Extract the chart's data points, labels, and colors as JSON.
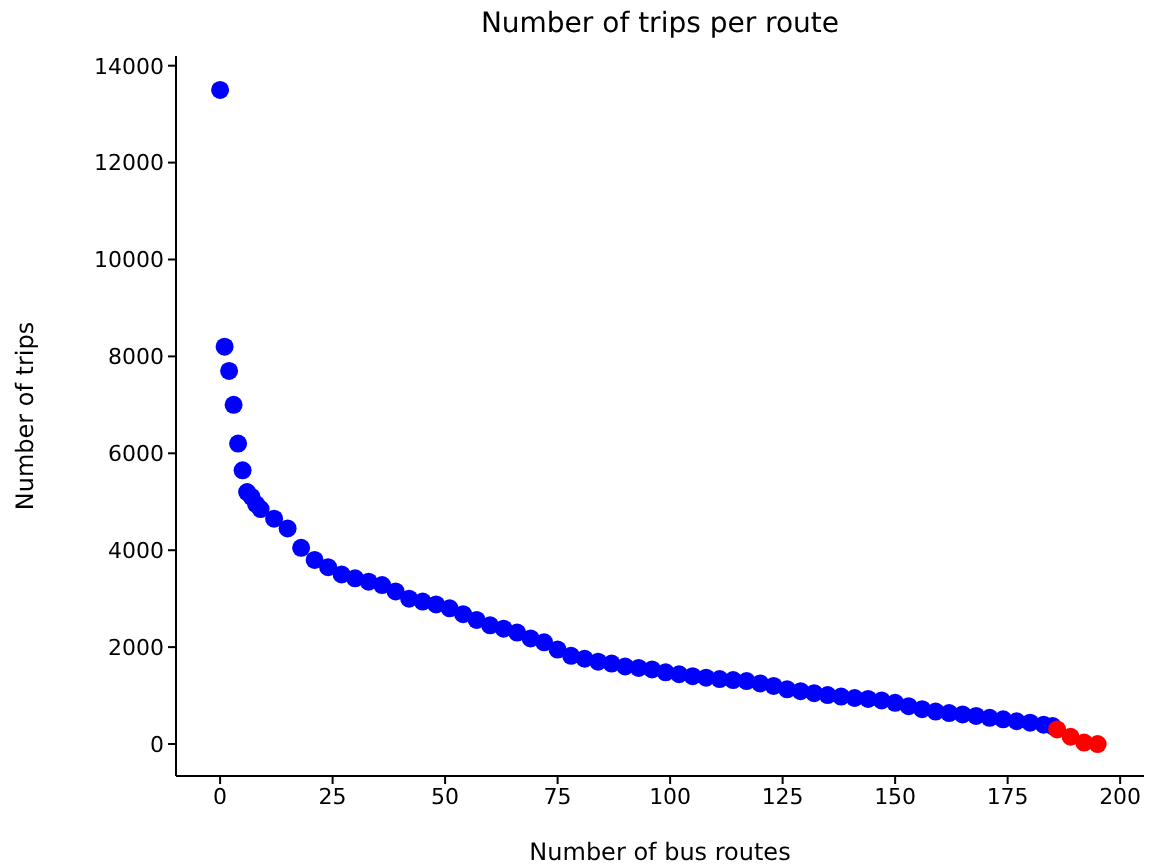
{
  "chart_data": {
    "type": "scatter",
    "title": "Number of trips per route",
    "xlabel": "Number of bus routes",
    "ylabel": "Number of trips",
    "xlim": [
      -9.8,
      205.3
    ],
    "xticks": [
      0,
      25,
      50,
      75,
      100,
      125,
      150,
      175,
      200
    ],
    "ylim": [
      -660,
      14200
    ],
    "yticks": [
      0,
      2000,
      4000,
      6000,
      8000,
      10000,
      12000,
      14000
    ],
    "grid": false,
    "marker": "circle",
    "series": [
      {
        "color": "#0000ff",
        "x": [
          0,
          1,
          2,
          3,
          4,
          5,
          6,
          7,
          8,
          9,
          12,
          15,
          18,
          21,
          24,
          27,
          30,
          33,
          36,
          39,
          42,
          45,
          48,
          51,
          54,
          57,
          60,
          63,
          66,
          69,
          72,
          75,
          78,
          81,
          84,
          87,
          90,
          93,
          96,
          99,
          102,
          105,
          108,
          111,
          114,
          117,
          120,
          123,
          126,
          129,
          132,
          135,
          138,
          141,
          144,
          147,
          150,
          153,
          156,
          159,
          162,
          165,
          168,
          171,
          174,
          177,
          180,
          183,
          185
        ],
        "values": [
          13500,
          8200,
          7700,
          7000,
          6200,
          5650,
          5200,
          5100,
          4950,
          4850,
          4650,
          4450,
          4050,
          3800,
          3650,
          3500,
          3420,
          3350,
          3280,
          3150,
          3000,
          2940,
          2880,
          2800,
          2680,
          2560,
          2450,
          2380,
          2300,
          2180,
          2100,
          1950,
          1820,
          1760,
          1700,
          1660,
          1600,
          1570,
          1540,
          1480,
          1440,
          1400,
          1370,
          1340,
          1320,
          1300,
          1250,
          1200,
          1130,
          1090,
          1050,
          1010,
          980,
          950,
          930,
          900,
          850,
          780,
          720,
          670,
          640,
          610,
          580,
          540,
          510,
          470,
          440,
          400,
          370
        ]
      },
      {
        "color": "#ff0000",
        "x": [
          186,
          189,
          192,
          195
        ],
        "values": [
          300,
          150,
          30,
          0
        ]
      }
    ]
  }
}
